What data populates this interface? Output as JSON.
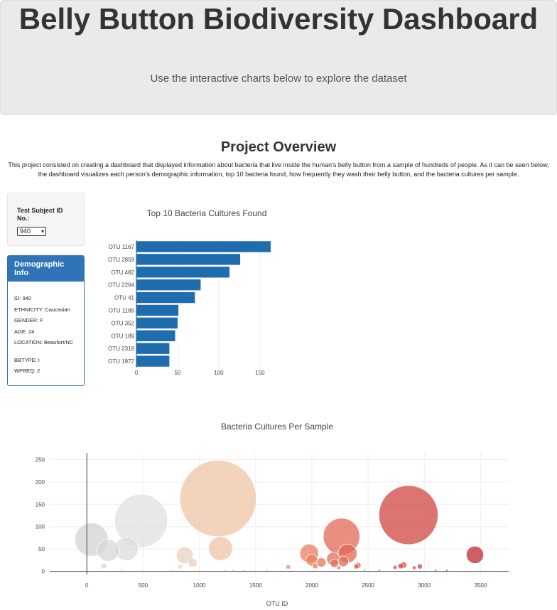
{
  "header": {
    "title": "Belly Button Biodiversity Dashboard",
    "subtitle": "Use the interactive charts below to explore the dataset"
  },
  "overview": {
    "title": "Project Overview",
    "text": "This project consisted on creating a dashboard that displayed information about bacteria that live inside the human's belly button from a sample of hundreds of people. As it can be seen below, the dashboard visualizes each person's demographic information, top 10 bacteria found, how frequently they wash their belly button, and the bacteria cultures per sample."
  },
  "selector": {
    "label": "Test Subject ID No.:",
    "selected": "940",
    "caret": "▾"
  },
  "demographics": {
    "title": "Demographic Info",
    "rows": [
      "ID: 940",
      "ETHNICITY: Caucasian",
      "GENDER: F",
      "AGE: 24",
      "LOCATION: Beaufort/NC",
      "BBTYPE: I",
      "WFREQ: 2"
    ]
  },
  "colors": {
    "bar": "#1f6cae",
    "panel_header": "#2f73b8"
  },
  "chart_data": [
    {
      "type": "bar",
      "orientation": "horizontal",
      "title": "Top 10 Bacteria Cultures Found",
      "categories": [
        "OTU 1167",
        "OTU 2859",
        "OTU 482",
        "OTU 2264",
        "OTU 41",
        "OTU 1189",
        "OTU 352",
        "OTU 189",
        "OTU 2318",
        "OTU 1977"
      ],
      "values": [
        163,
        126,
        113,
        78,
        71,
        51,
        50,
        47,
        40,
        40
      ],
      "xlim": [
        0,
        163
      ],
      "xticks": [
        0,
        50,
        100,
        150
      ],
      "grid": true
    },
    {
      "type": "scatter",
      "subtype": "bubble",
      "title": "Bacteria Cultures Per Sample",
      "xlabel": "OTU ID",
      "xlim": [
        -330,
        3750
      ],
      "ylim": [
        -7,
        265
      ],
      "xticks": [
        0,
        500,
        1000,
        1500,
        2000,
        2500,
        3000,
        3500
      ],
      "yticks": [
        0,
        50,
        100,
        150,
        200,
        250
      ],
      "colorscale": "Earth",
      "points": [
        {
          "x": 41,
          "y": 71
        },
        {
          "x": 189,
          "y": 47
        },
        {
          "x": 352,
          "y": 50
        },
        {
          "x": 482,
          "y": 113
        },
        {
          "x": 1167,
          "y": 163
        },
        {
          "x": 1189,
          "y": 51
        },
        {
          "x": 870,
          "y": 36
        },
        {
          "x": 940,
          "y": 19
        },
        {
          "x": 2264,
          "y": 78
        },
        {
          "x": 2318,
          "y": 40
        },
        {
          "x": 1977,
          "y": 40
        },
        {
          "x": 2859,
          "y": 126
        },
        {
          "x": 3450,
          "y": 37
        },
        {
          "x": 2000,
          "y": 25
        },
        {
          "x": 2030,
          "y": 12
        },
        {
          "x": 2085,
          "y": 20
        },
        {
          "x": 2190,
          "y": 28
        },
        {
          "x": 2200,
          "y": 18
        },
        {
          "x": 2240,
          "y": 8
        },
        {
          "x": 2280,
          "y": 22
        },
        {
          "x": 2395,
          "y": 11
        },
        {
          "x": 2410,
          "y": 13
        },
        {
          "x": 1790,
          "y": 10
        },
        {
          "x": 2740,
          "y": 9
        },
        {
          "x": 2790,
          "y": 12
        },
        {
          "x": 2815,
          "y": 14
        },
        {
          "x": 2910,
          "y": 8
        },
        {
          "x": 2960,
          "y": 11
        },
        {
          "x": 830,
          "y": 10
        },
        {
          "x": 150,
          "y": 12
        },
        {
          "x": 300,
          "y": 4
        },
        {
          "x": 1230,
          "y": 3
        },
        {
          "x": 1300,
          "y": 2
        },
        {
          "x": 1400,
          "y": 2
        },
        {
          "x": 1600,
          "y": 2
        },
        {
          "x": 2470,
          "y": 3
        },
        {
          "x": 2600,
          "y": 2
        },
        {
          "x": 3100,
          "y": 2
        },
        {
          "x": 3200,
          "y": 2
        },
        {
          "x": 750,
          "y": 2
        }
      ]
    }
  ]
}
